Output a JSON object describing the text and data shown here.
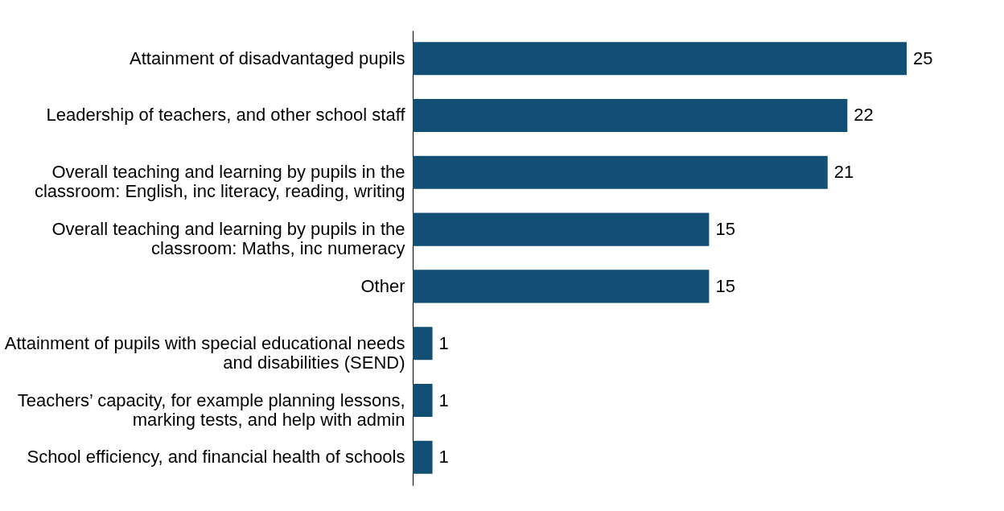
{
  "chart_data": {
    "type": "bar",
    "orientation": "horizontal",
    "categories": [
      "Attainment of disadvantaged pupils",
      "Leadership of teachers, and other school staff",
      "Overall teaching and learning by pupils in the\nclassroom: English, inc literacy, reading, writing",
      "Overall teaching and learning by pupils in the\nclassroom: Maths, inc numeracy",
      "Other",
      "Attainment of pupils with special educational needs\nand disabilities (SEND)",
      "Teachers’ capacity, for example planning lessons,\nmarking tests, and help with admin",
      "School efficiency, and financial health of schools"
    ],
    "values": [
      25,
      22,
      21,
      15,
      15,
      1,
      1,
      1
    ],
    "color": "#124f74",
    "data_labels": true
  }
}
